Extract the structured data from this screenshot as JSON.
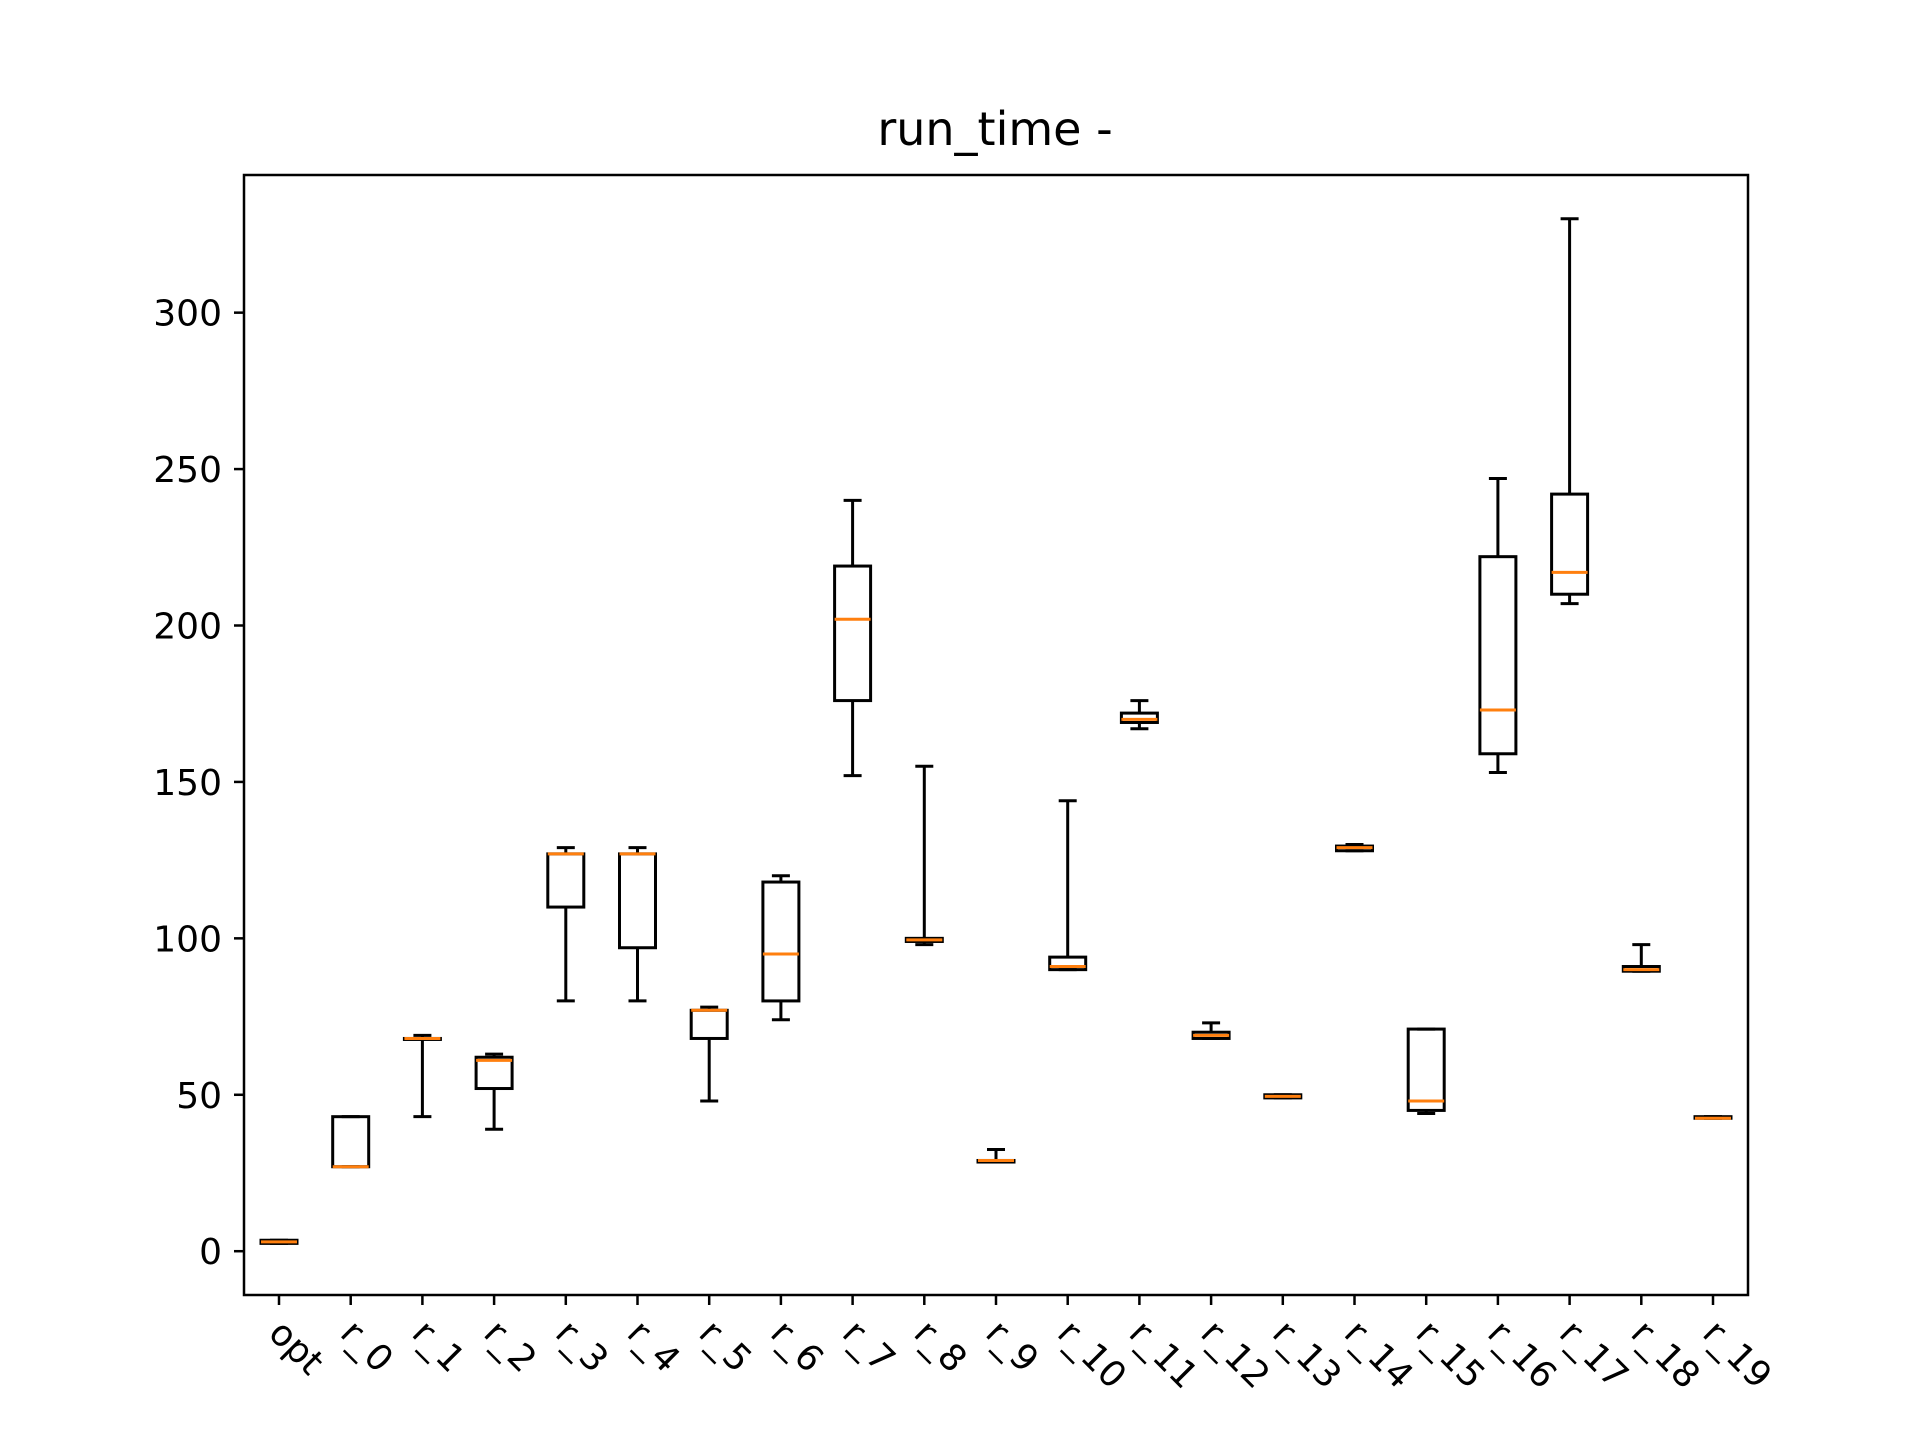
{
  "chart_data": {
    "type": "box",
    "title": "run_time -",
    "xlabel": "",
    "ylabel": "",
    "ylim": [
      -14,
      344
    ],
    "yticks": [
      0,
      50,
      100,
      150,
      200,
      250,
      300
    ],
    "grid": false,
    "categories": [
      "opt",
      "r_0",
      "r_1",
      "r_2",
      "r_3",
      "r_4",
      "r_5",
      "r_6",
      "r_7",
      "r_8",
      "r_9",
      "r_10",
      "r_11",
      "r_12",
      "r_13",
      "r_14",
      "r_15",
      "r_16",
      "r_17",
      "r_18",
      "r_19"
    ],
    "boxes": [
      {
        "whislo": 2.5,
        "q1": 2.5,
        "med": 3,
        "q3": 3.5,
        "whishi": 3.5
      },
      {
        "whislo": 27,
        "q1": 27,
        "med": 27,
        "q3": 43,
        "whishi": 43
      },
      {
        "whislo": 43,
        "q1": 68,
        "med": 68,
        "q3": 68,
        "whishi": 69
      },
      {
        "whislo": 39,
        "q1": 52,
        "med": 61,
        "q3": 62,
        "whishi": 63
      },
      {
        "whislo": 80,
        "q1": 110,
        "med": 127,
        "q3": 127,
        "whishi": 129
      },
      {
        "whislo": 80,
        "q1": 97,
        "med": 127,
        "q3": 127,
        "whishi": 129
      },
      {
        "whislo": 48,
        "q1": 68,
        "med": 77,
        "q3": 77,
        "whishi": 78
      },
      {
        "whislo": 74,
        "q1": 80,
        "med": 95,
        "q3": 118,
        "whishi": 120
      },
      {
        "whislo": 152,
        "q1": 176,
        "med": 202,
        "q3": 219,
        "whishi": 240
      },
      {
        "whislo": 98,
        "q1": 99,
        "med": 99.5,
        "q3": 100,
        "whishi": 155
      },
      {
        "whislo": 28.5,
        "q1": 28.5,
        "med": 29,
        "q3": 29,
        "whishi": 32.5
      },
      {
        "whislo": 90,
        "q1": 90,
        "med": 91,
        "q3": 94,
        "whishi": 144
      },
      {
        "whislo": 167,
        "q1": 169,
        "med": 170,
        "q3": 172,
        "whishi": 176
      },
      {
        "whislo": 68,
        "q1": 68,
        "med": 69,
        "q3": 70,
        "whishi": 73
      },
      {
        "whislo": 49,
        "q1": 49,
        "med": 49.5,
        "q3": 50,
        "whishi": 50
      },
      {
        "whislo": 128,
        "q1": 128,
        "med": 129,
        "q3": 129.5,
        "whishi": 130
      },
      {
        "whislo": 44,
        "q1": 45,
        "med": 48,
        "q3": 71,
        "whishi": 71
      },
      {
        "whislo": 153,
        "q1": 159,
        "med": 173,
        "q3": 222,
        "whishi": 247
      },
      {
        "whislo": 207,
        "q1": 210,
        "med": 217,
        "q3": 242,
        "whishi": 330
      },
      {
        "whislo": 89.5,
        "q1": 89.5,
        "med": 90,
        "q3": 91,
        "whishi": 98
      },
      {
        "whislo": 42.5,
        "q1": 42.5,
        "med": 42.5,
        "q3": 43,
        "whishi": 43
      }
    ]
  }
}
